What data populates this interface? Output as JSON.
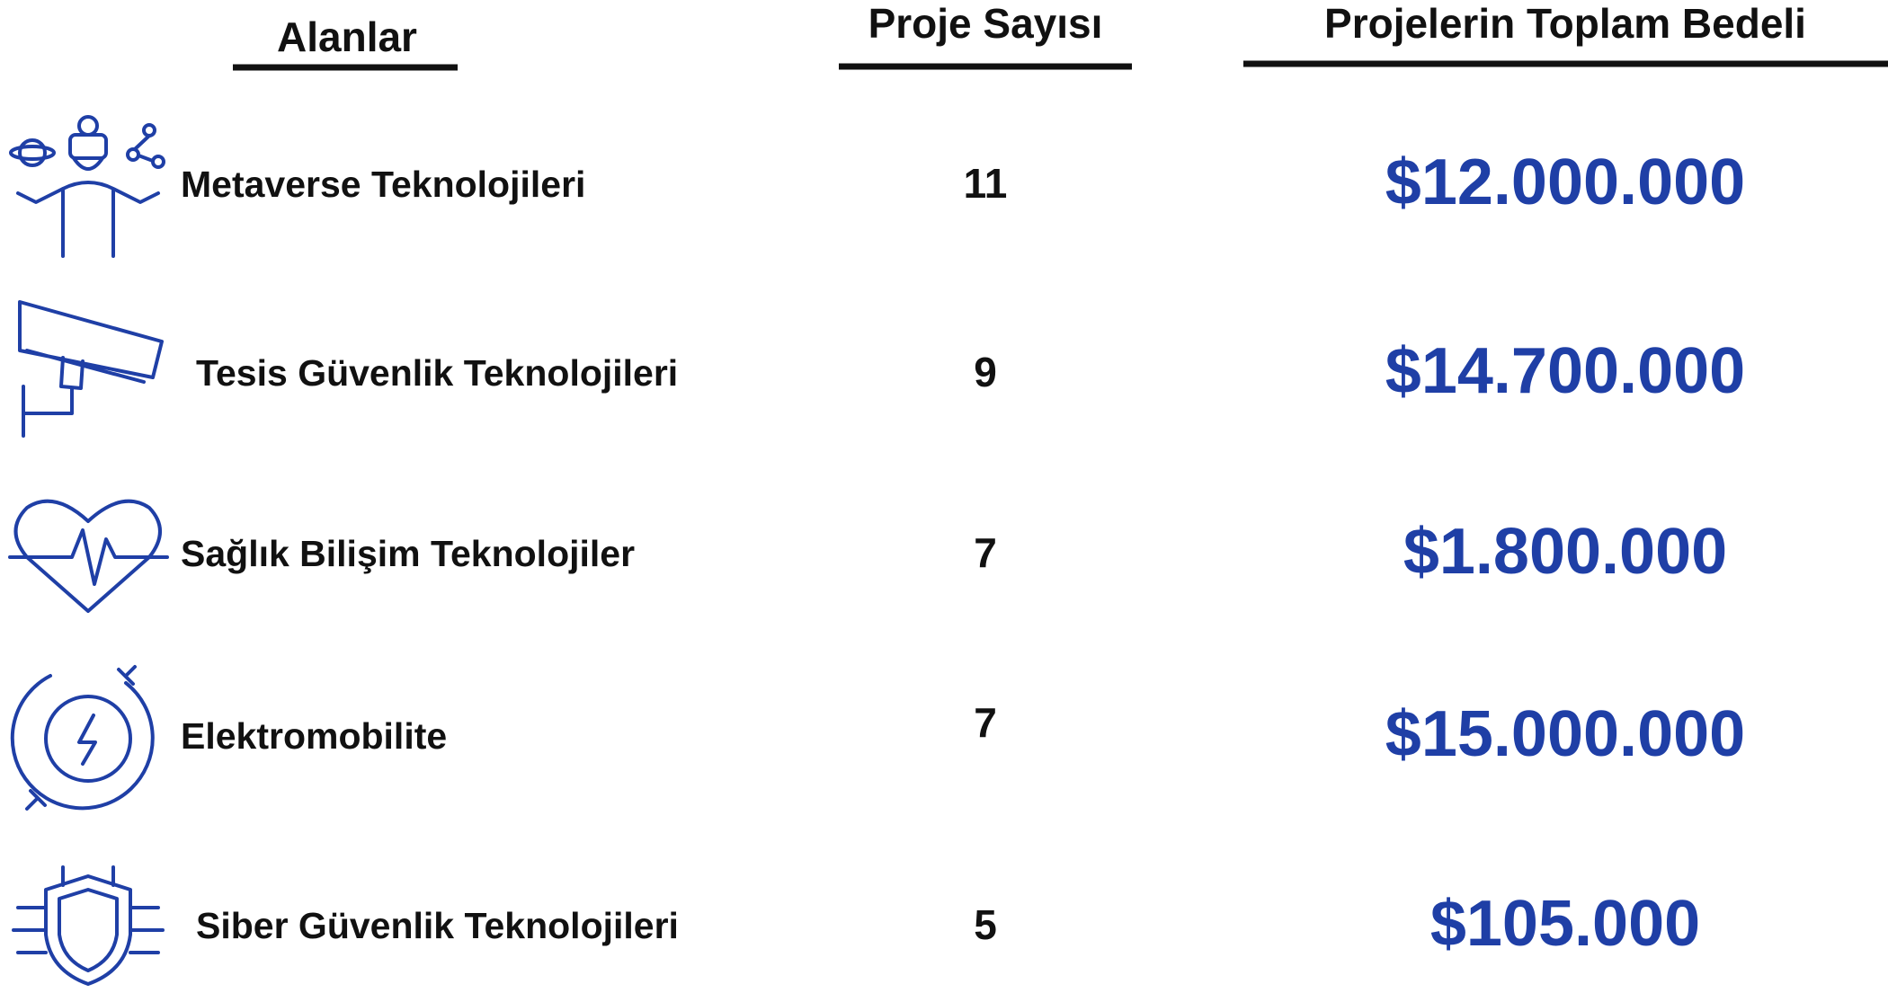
{
  "header": {
    "columns": [
      "Alanlar",
      "Proje Sayısı",
      "Projelerin Toplam Bedeli"
    ]
  },
  "table": {
    "rows": [
      [
        "Metaverse Teknolojileri",
        "11",
        "$12.000.000"
      ],
      [
        "Tesis Güvenlik Teknolojileri",
        "9",
        "$14.700.000"
      ],
      [
        "Sağlık Bilişim Teknolojiler",
        "7",
        "$1.800.000"
      ],
      [
        "Elektromobilite",
        "7",
        "$15.000.000"
      ],
      [
        "Siber Güvenlik Teknolojileri",
        "5",
        "$105.000"
      ]
    ]
  }
}
